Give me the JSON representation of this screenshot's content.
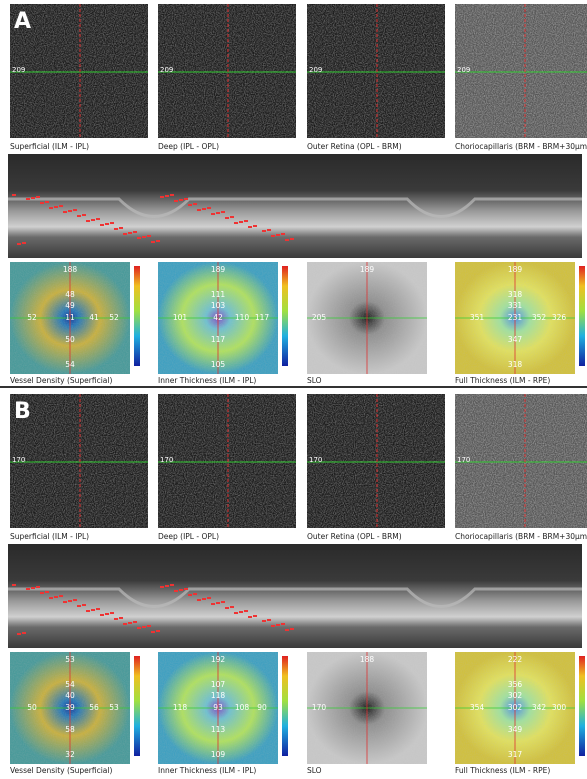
{
  "panels": [
    {
      "label": "A",
      "line_label": "209",
      "enface_captions": [
        "Superficial (ILM - IPL)",
        "Deep (IPL - OPL)",
        "Outer Retina (OPL - BRM)",
        "Choriocapillaris (BRM - BRM+30µm)"
      ],
      "map_captions": [
        "Vessel Density (Superficial)",
        "Inner Thickness (ILM - IPL)",
        "SLO",
        "Full Thickness (ILM - RPE)"
      ],
      "maps": [
        {
          "labels": [
            "188",
            "48",
            "52",
            "49",
            "11",
            "41",
            "52",
            "50",
            "54"
          ]
        },
        {
          "labels": [
            "189",
            "111",
            "101",
            "103",
            "42",
            "110",
            "117",
            "117",
            "105"
          ]
        },
        {
          "labels": [
            "189",
            "205"
          ]
        },
        {
          "labels": [
            "189",
            "318",
            "351",
            "331",
            "231",
            "352",
            "326",
            "347",
            "318"
          ]
        }
      ]
    },
    {
      "label": "B",
      "line_label": "170",
      "enface_captions": [
        "Superficial (ILM - IPL)",
        "Deep (IPL - OPL)",
        "Outer Retina (OPL - BRM)",
        "Choriocapillaris (BRM - BRM+30µm)"
      ],
      "map_captions": [
        "Vessel Density (Superficial)",
        "Inner Thickness (ILM - IPL)",
        "SLO",
        "Full Thickness (ILM - RPE)"
      ],
      "maps": [
        {
          "labels": [
            "53",
            "54",
            "50",
            "40",
            "39",
            "56",
            "53",
            "58",
            "32"
          ]
        },
        {
          "labels": [
            "192",
            "107",
            "118",
            "118",
            "93",
            "108",
            "90",
            "113",
            "109"
          ]
        },
        {
          "labels": [
            "188",
            "170"
          ]
        },
        {
          "labels": [
            "222",
            "356",
            "354",
            "302",
            "302",
            "342",
            "300",
            "349",
            "317"
          ]
        }
      ]
    }
  ]
}
